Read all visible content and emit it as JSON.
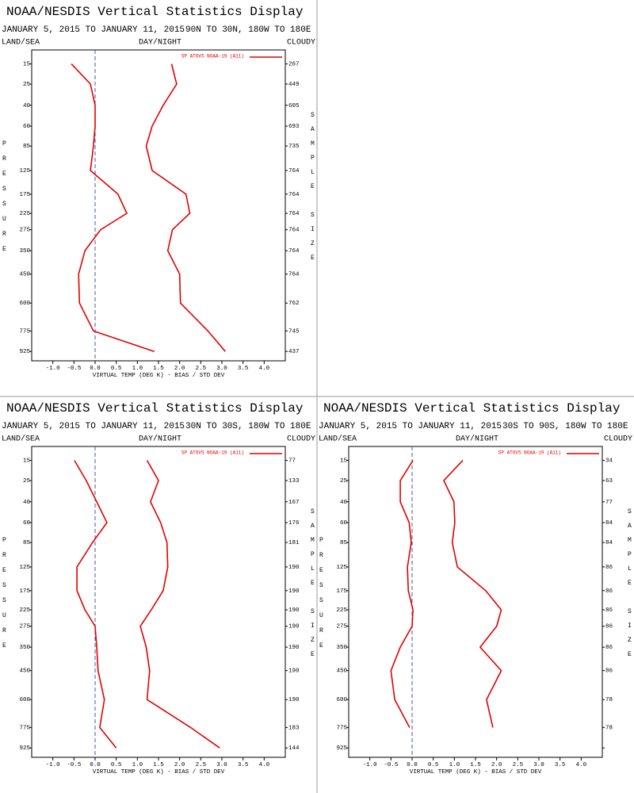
{
  "chart_data": [
    {
      "type": "line",
      "title": "NOAA/NESDIS Vertical Statistics Display",
      "date_range": "JANUARY 5, 2015 TO JANUARY 11, 2015",
      "region": "90N TO 30N, 180W TO 180E",
      "header_left": "LAND/SEA",
      "header_center": "DAY/NIGHT",
      "header_right": "CLOUDY",
      "y_label": "PRESSURE",
      "y2_label": "SAMPLE SIZE",
      "x_label": "VIRTUAL TEMP (DEG K) - BIAS / STD DEV",
      "xlim": [
        -1.5,
        4.5
      ],
      "xticks": [
        {
          "value": -1.0,
          "label": "-1.0"
        },
        {
          "value": -0.5,
          "label": "-0.5"
        },
        {
          "value": 0,
          "label": "0.0"
        },
        {
          "value": 0.5,
          "label": "0.5"
        },
        {
          "value": 1.0,
          "label": "1.0"
        },
        {
          "value": 1.5,
          "label": "1.5"
        },
        {
          "value": 2.0,
          "label": "2.0"
        },
        {
          "value": 2.5,
          "label": "2.5"
        },
        {
          "value": 3.0,
          "label": "3.0"
        },
        {
          "value": 3.5,
          "label": "3.5"
        },
        {
          "value": 4.0,
          "label": "4.0"
        }
      ],
      "ylim": [
        10,
        1000
      ],
      "levels": [
        15,
        25,
        40,
        60,
        85,
        125,
        175,
        225,
        275,
        350,
        450,
        600,
        775,
        925
      ],
      "sample_size": [
        267,
        449,
        605,
        693,
        735,
        764,
        764,
        764,
        764,
        764,
        764,
        762,
        745,
        437
      ],
      "series": [
        {
          "name": "SP ATOVS NOAA-19 (A11)",
          "color": "#e00000",
          "values": [
            -0.56,
            -0.11,
            0.0,
            0.0,
            -0.04,
            -0.11,
            0.54,
            0.75,
            0.13,
            -0.24,
            -0.39,
            -0.37,
            -0.04,
            1.4
          ],
          "std_dev": [
            1.81,
            1.93,
            1.61,
            1.35,
            1.21,
            1.35,
            2.15,
            2.24,
            1.83,
            1.72,
            2.0,
            2.02,
            2.67,
            3.08
          ]
        }
      ]
    },
    {
      "type": "line",
      "title": "NOAA/NESDIS Vertical Statistics Display",
      "date_range": "JANUARY 5, 2015 TO JANUARY 11, 2015",
      "region": "30N TO 30S, 180W TO 180E",
      "header_left": "LAND/SEA",
      "header_center": "DAY/NIGHT",
      "header_right": "CLOUDY",
      "y_label": "PRESSURE",
      "y2_label": "SAMPLE SIZE",
      "x_label": "VIRTUAL TEMP (DEG K) - BIAS / STD DEV",
      "xlim": [
        -1.5,
        4.5
      ],
      "xticks": [
        {
          "value": -1.0,
          "label": "-1.0"
        },
        {
          "value": -0.5,
          "label": "-0.5"
        },
        {
          "value": 0,
          "label": "0.0"
        },
        {
          "value": 0.5,
          "label": "0.5"
        },
        {
          "value": 1.0,
          "label": "1.0"
        },
        {
          "value": 1.5,
          "label": "1.5"
        },
        {
          "value": 2.0,
          "label": "2.0"
        },
        {
          "value": 2.5,
          "label": "2.5"
        },
        {
          "value": 3.0,
          "label": "3.0"
        },
        {
          "value": 3.5,
          "label": "3.5"
        },
        {
          "value": 4.0,
          "label": "4.0"
        }
      ],
      "ylim": [
        10,
        1000
      ],
      "levels": [
        15,
        25,
        40,
        60,
        85,
        125,
        175,
        225,
        275,
        350,
        450,
        600,
        775,
        925
      ],
      "sample_size": [
        77,
        133,
        167,
        176,
        181,
        190,
        190,
        190,
        190,
        190,
        190,
        190,
        183,
        144
      ],
      "series": [
        {
          "name": "SP ATOVS NOAA-19 (A11)",
          "color": "#e00000",
          "values": [
            -0.49,
            -0.21,
            0.04,
            0.28,
            -0.06,
            -0.43,
            -0.43,
            -0.24,
            0.0,
            0.04,
            0.07,
            0.22,
            0.11,
            0.5
          ],
          "std_dev": [
            1.23,
            1.5,
            1.31,
            1.55,
            1.7,
            1.72,
            1.61,
            1.33,
            1.07,
            1.21,
            1.29,
            1.23,
            2.26,
            2.95
          ]
        }
      ]
    },
    {
      "type": "line",
      "title": "NOAA/NESDIS Vertical Statistics Display",
      "date_range": "JANUARY 5, 2015 TO JANUARY 11, 2015",
      "region": "30S TO 90S, 180W TO 180E",
      "header_left": "LAND/SEA",
      "header_center": "DAY/NIGHT",
      "header_right": "CLOUDY",
      "y_label": "PRESSURE",
      "y2_label": "SAMPLE SIZE",
      "x_label": "VIRTUAL TEMP (DEG K) - BIAS / STD DEV",
      "xlim": [
        -1.5,
        4.5
      ],
      "xticks": [
        {
          "value": -1.0,
          "label": "-1.0"
        },
        {
          "value": -0.5,
          "label": "-0.5"
        },
        {
          "value": 0,
          "label": "0.0"
        },
        {
          "value": 0.5,
          "label": "0.5"
        },
        {
          "value": 1.0,
          "label": "1.0"
        },
        {
          "value": 1.5,
          "label": "1.5"
        },
        {
          "value": 2.0,
          "label": "2.0"
        },
        {
          "value": 2.5,
          "label": "2.5"
        },
        {
          "value": 3.0,
          "label": "3.0"
        },
        {
          "value": 3.5,
          "label": "3.5"
        },
        {
          "value": 4.0,
          "label": "4.0"
        }
      ],
      "ylim": [
        10,
        1000
      ],
      "levels": [
        15,
        25,
        40,
        60,
        85,
        125,
        175,
        225,
        275,
        350,
        450,
        600,
        775,
        925
      ],
      "sample_size": [
        34,
        63,
        77,
        84,
        84,
        86,
        86,
        86,
        86,
        86,
        86,
        78,
        78,
        null
      ],
      "series": [
        {
          "name": "SP ATOVS NOAA-19 (A11)",
          "color": "#e00000",
          "values": [
            0.02,
            -0.28,
            -0.28,
            -0.07,
            -0.02,
            -0.11,
            -0.09,
            0.02,
            0.0,
            -0.28,
            -0.5,
            -0.41,
            -0.06,
            null
          ],
          "std_dev": [
            1.2,
            0.75,
            0.99,
            1.01,
            0.95,
            1.07,
            1.74,
            2.11,
            2.0,
            1.61,
            2.11,
            1.76,
            1.91,
            null
          ]
        }
      ]
    }
  ]
}
